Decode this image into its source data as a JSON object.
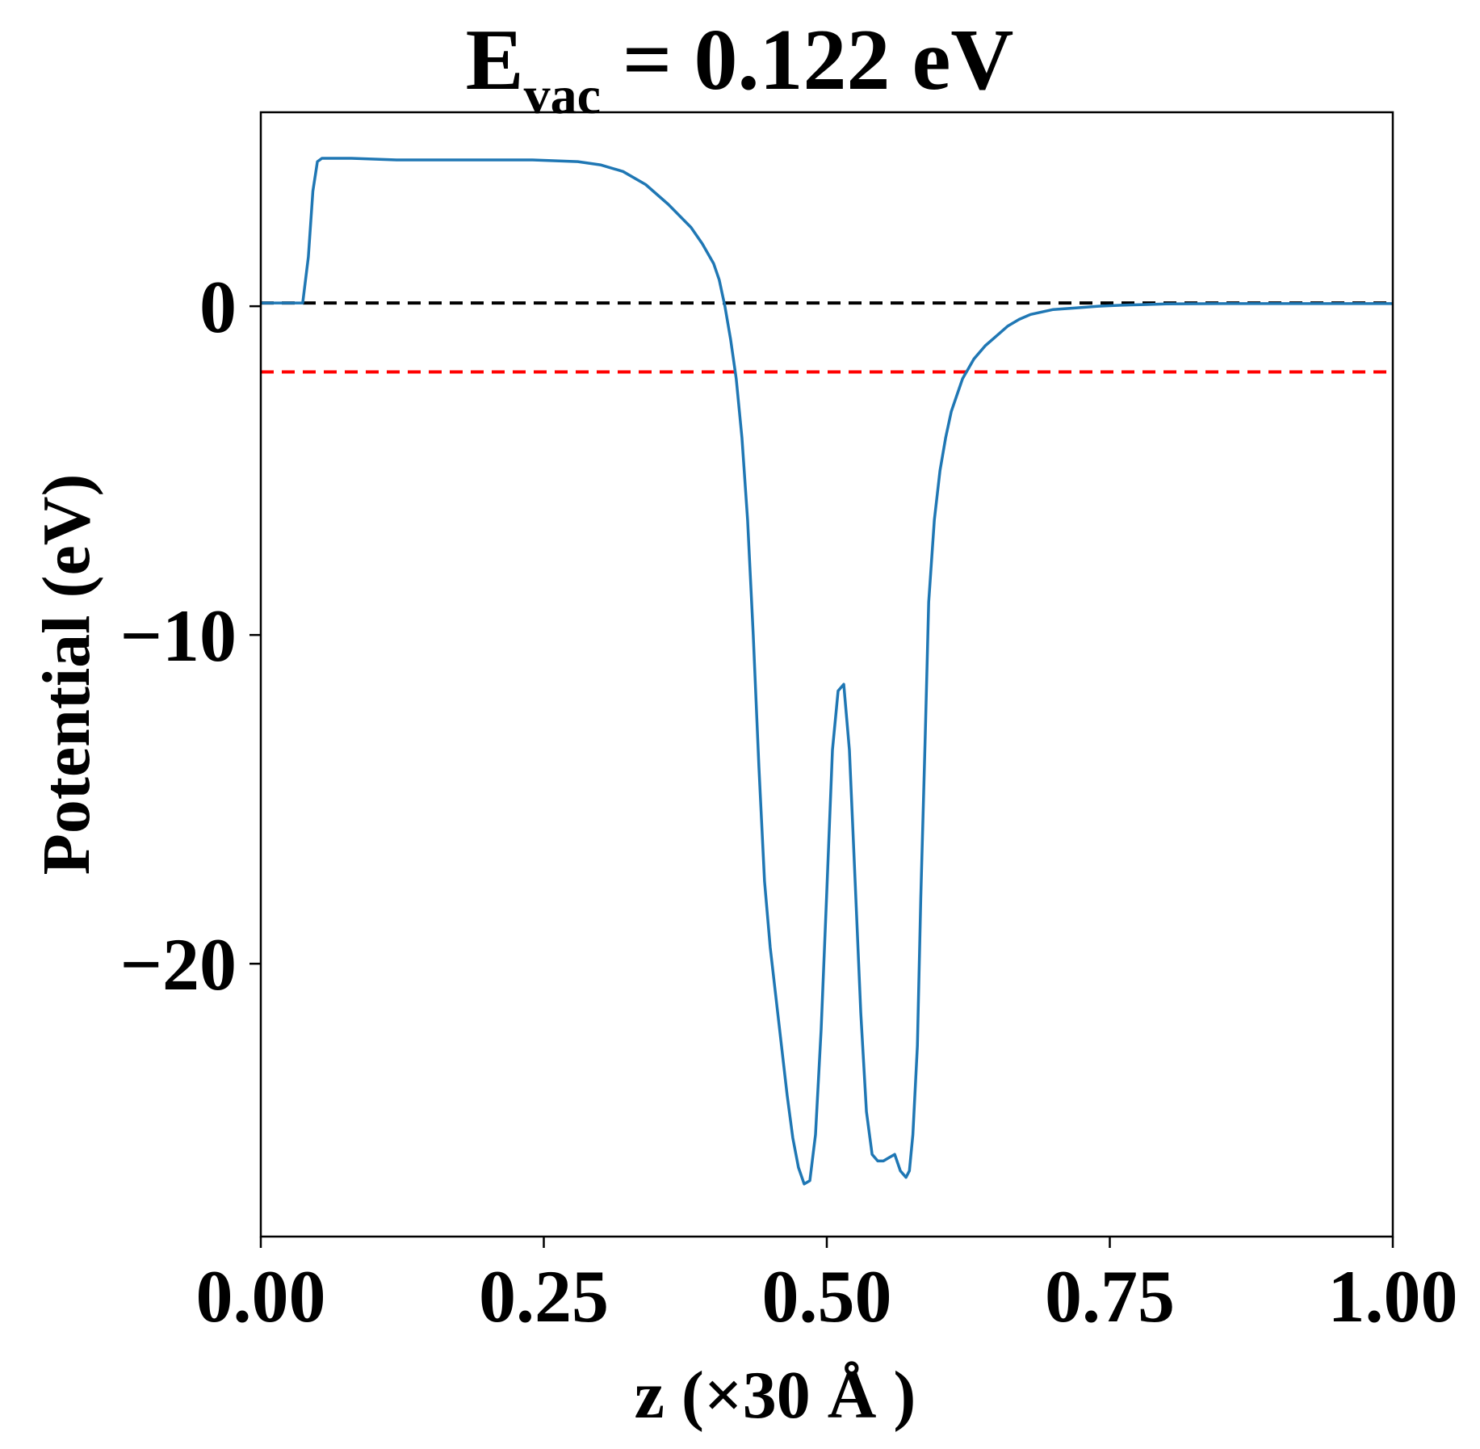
{
  "chart_data": {
    "type": "line",
    "title": {
      "main": "E",
      "subscript": "vac",
      "rest": " = 0.122 eV"
    },
    "xlabel": "z (×30 Å )",
    "ylabel": "Potential (eV)",
    "xlim": [
      0.0,
      1.0
    ],
    "ylim": [
      -28.3,
      5.9
    ],
    "xticks": [
      0.0,
      0.25,
      0.5,
      0.75,
      1.0
    ],
    "xtick_labels": [
      "0.00",
      "0.25",
      "0.50",
      "0.75",
      "1.00"
    ],
    "yticks": [
      0,
      -10,
      -20
    ],
    "ytick_labels": [
      "0",
      "−10",
      "−20"
    ],
    "grid": false,
    "series": [
      {
        "color": "#1f77b4",
        "x": [
          0.0,
          0.02,
          0.037,
          0.042,
          0.046,
          0.05,
          0.054,
          0.058,
          0.065,
          0.08,
          0.12,
          0.16,
          0.2,
          0.24,
          0.28,
          0.3,
          0.32,
          0.34,
          0.36,
          0.38,
          0.39,
          0.4,
          0.405,
          0.41,
          0.415,
          0.42,
          0.425,
          0.43,
          0.435,
          0.44,
          0.445,
          0.45,
          0.455,
          0.46,
          0.465,
          0.47,
          0.475,
          0.48,
          0.485,
          0.49,
          0.495,
          0.5,
          0.505,
          0.51,
          0.515,
          0.52,
          0.525,
          0.53,
          0.535,
          0.54,
          0.545,
          0.55,
          0.555,
          0.56,
          0.565,
          0.57,
          0.573,
          0.576,
          0.58,
          0.583,
          0.587,
          0.59,
          0.595,
          0.6,
          0.605,
          0.61,
          0.615,
          0.62,
          0.625,
          0.63,
          0.64,
          0.65,
          0.66,
          0.67,
          0.68,
          0.7,
          0.72,
          0.74,
          0.76,
          0.78,
          0.8,
          0.85,
          0.9,
          0.95,
          1.0
        ],
        "y": [
          0.1,
          0.1,
          0.1,
          1.5,
          3.5,
          4.4,
          4.5,
          4.5,
          4.5,
          4.5,
          4.45,
          4.45,
          4.45,
          4.45,
          4.4,
          4.3,
          4.1,
          3.7,
          3.1,
          2.4,
          1.9,
          1.3,
          0.8,
          0.0,
          -1.0,
          -2.2,
          -4.0,
          -6.5,
          -10.0,
          -14.0,
          -17.5,
          -19.5,
          -21.0,
          -22.5,
          -24.0,
          -25.3,
          -26.2,
          -26.7,
          -26.6,
          -25.2,
          -22.0,
          -17.8,
          -13.5,
          -11.7,
          -11.5,
          -13.5,
          -17.5,
          -21.5,
          -24.5,
          -25.8,
          -26.0,
          -26.0,
          -25.9,
          -25.8,
          -26.3,
          -26.5,
          -26.3,
          -25.2,
          -22.5,
          -18.0,
          -13.0,
          -9.0,
          -6.5,
          -5.0,
          -4.0,
          -3.2,
          -2.7,
          -2.2,
          -1.9,
          -1.6,
          -1.2,
          -0.9,
          -0.6,
          -0.4,
          -0.25,
          -0.1,
          -0.05,
          0.0,
          0.03,
          0.05,
          0.07,
          0.08,
          0.08,
          0.08,
          0.08
        ]
      }
    ],
    "reference_lines": [
      {
        "y": 0.1,
        "color": "#000000",
        "style": "dashed"
      },
      {
        "y": -2.0,
        "color": "#ff0000",
        "style": "dashed"
      }
    ]
  }
}
